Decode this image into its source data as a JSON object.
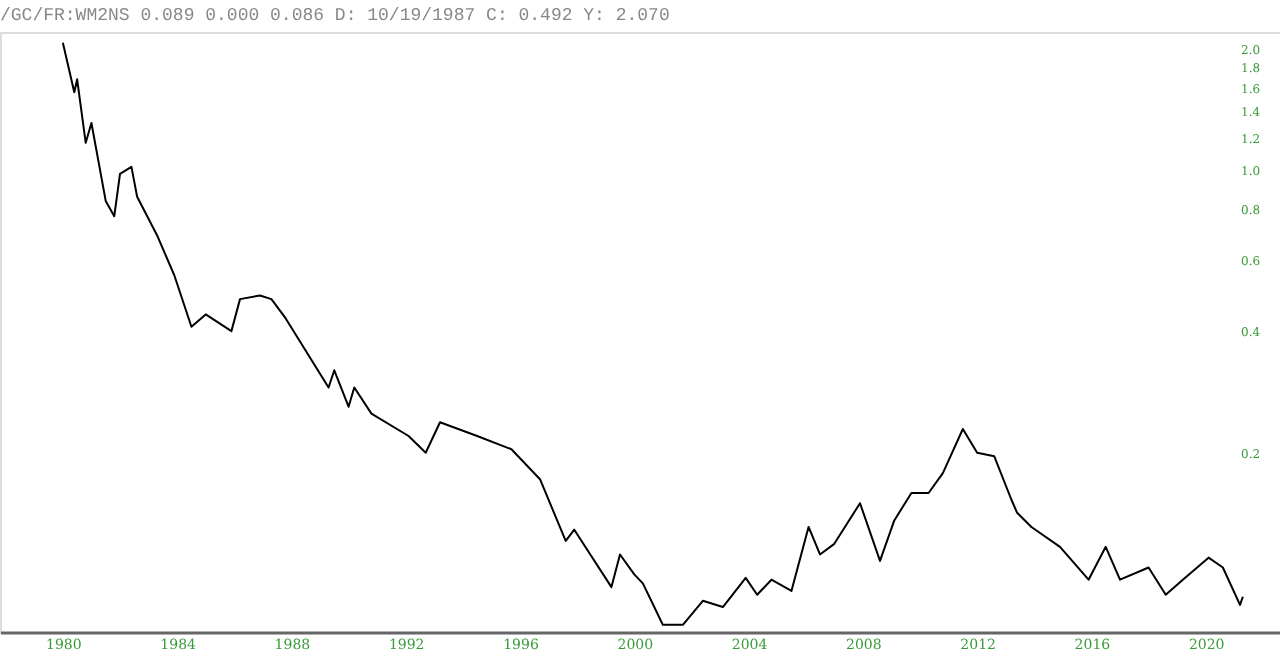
{
  "chart_data": {
    "type": "line",
    "title": "/GC/FR:WM2NS 0.089 0.000 0.086 D: 10/19/1987 C: 0.492 Y: 2.070",
    "x": [
      1980.0,
      1980.4,
      1980.5,
      1980.8,
      1981.0,
      1981.5,
      1981.8,
      1982.0,
      1982.4,
      1982.6,
      1983.3,
      1983.9,
      1984.5,
      1985.0,
      1985.9,
      1986.2,
      1986.9,
      1987.3,
      1987.8,
      1989.3,
      1989.5,
      1990.0,
      1990.2,
      1990.8,
      1992.1,
      1992.7,
      1993.2,
      1994.5,
      1995.7,
      1996.7,
      1997.6,
      1997.9,
      1999.2,
      1999.5,
      2000.0,
      2000.3,
      2000.7,
      2001.0,
      2001.7,
      2002.4,
      2003.1,
      2003.9,
      2004.3,
      2004.8,
      2005.5,
      2006.1,
      2006.5,
      2007.0,
      2007.9,
      2008.6,
      2009.1,
      2009.7,
      2010.3,
      2010.8,
      2011.5,
      2012.0,
      2012.6,
      2013.2,
      2013.4,
      2013.9,
      2014.9,
      2015.9,
      2016.5,
      2017.0,
      2018.0,
      2018.6,
      2019.2,
      2020.1,
      2020.6,
      2021.2,
      2021.3
    ],
    "series": [
      {
        "color": "#000000",
        "values": [
          2.07,
          1.56,
          1.68,
          1.17,
          1.31,
          0.84,
          0.77,
          0.98,
          1.02,
          0.86,
          0.69,
          0.55,
          0.41,
          0.44,
          0.4,
          0.48,
          0.49,
          0.48,
          0.43,
          0.29,
          0.32,
          0.26,
          0.29,
          0.25,
          0.22,
          0.2,
          0.238,
          0.22,
          0.204,
          0.172,
          0.121,
          0.129,
          0.093,
          0.112,
          0.1,
          0.095,
          0.083,
          0.075,
          0.075,
          0.086,
          0.083,
          0.098,
          0.089,
          0.097,
          0.091,
          0.131,
          0.112,
          0.119,
          0.15,
          0.108,
          0.136,
          0.159,
          0.159,
          0.178,
          0.229,
          0.2,
          0.196,
          0.153,
          0.142,
          0.131,
          0.117,
          0.097,
          0.117,
          0.097,
          0.104,
          0.089,
          0.097,
          0.11,
          0.104,
          0.084,
          0.088
        ]
      }
    ],
    "xlim": [
      1977.8,
      2022.6
    ],
    "xticks": [
      1980,
      1984,
      1988,
      1992,
      1996,
      2000,
      2004,
      2008,
      2012,
      2016,
      2020
    ],
    "ylim": [
      0.072,
      2.2
    ],
    "yticks": [
      0.2,
      0.4,
      0.6,
      0.8,
      {
        "value": 1.0,
        "label": "1.0"
      },
      1.2,
      1.4,
      1.6,
      1.8,
      {
        "value": 2.0,
        "label": "2.0"
      }
    ],
    "log": "y",
    "grid": false,
    "line_style": "solid"
  }
}
